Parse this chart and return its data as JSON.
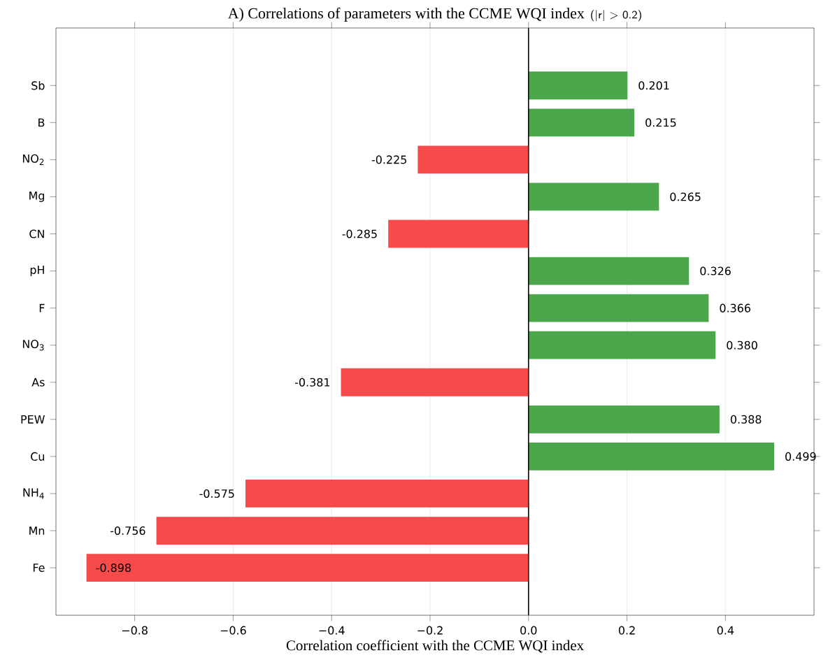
{
  "chart_data": {
    "type": "bar",
    "orientation": "horizontal",
    "title": "A) Correlations of parameters with the CCME WQI index",
    "subtitle": "(|r| > 0.2)",
    "xlabel": "Correlation coefficient with the CCME WQI index",
    "categories": [
      "Sb",
      "B",
      "NO$_{2}$",
      "Mg",
      "CN",
      "pH",
      "F",
      "NO$_{3}$",
      "As",
      "PEW",
      "Cu",
      "NH$_{4}$",
      "Mn",
      "Fe"
    ],
    "values": [
      0.201,
      0.215,
      -0.225,
      0.265,
      -0.285,
      0.326,
      0.366,
      0.38,
      -0.381,
      0.388,
      0.499,
      -0.575,
      -0.756,
      -0.898
    ],
    "value_labels": [
      "0.201",
      "0.215",
      "-0.225",
      "0.265",
      "-0.285",
      "0.326",
      "0.366",
      "0.380",
      "-0.381",
      "0.388",
      "0.499",
      "-0.575",
      "-0.756",
      "-0.898"
    ],
    "colors": [
      "#4ca64c",
      "#4ca64c",
      "#f74a4a",
      "#4ca64c",
      "#f74a4a",
      "#4ca64c",
      "#4ca64c",
      "#4ca64c",
      "#f74a4a",
      "#4ca64c",
      "#4ca64c",
      "#f74a4a",
      "#f74a4a",
      "#f74a4a"
    ],
    "xlim": [
      -0.96,
      0.58
    ],
    "xticks": [
      {
        "value": -0.8,
        "label": "−0.8"
      },
      {
        "value": -0.6,
        "label": "−0.6"
      },
      {
        "value": -0.4,
        "label": "−0.4"
      },
      {
        "value": -0.2,
        "label": "−0.2"
      },
      {
        "value": 0,
        "label": "0.0"
      },
      {
        "value": 0.2,
        "label": "0.2"
      },
      {
        "value": 0.4,
        "label": "0.4"
      }
    ],
    "grid": "x",
    "ref_lines": [
      {
        "axis": "x",
        "value": 0,
        "color": "#000000"
      }
    ]
  }
}
